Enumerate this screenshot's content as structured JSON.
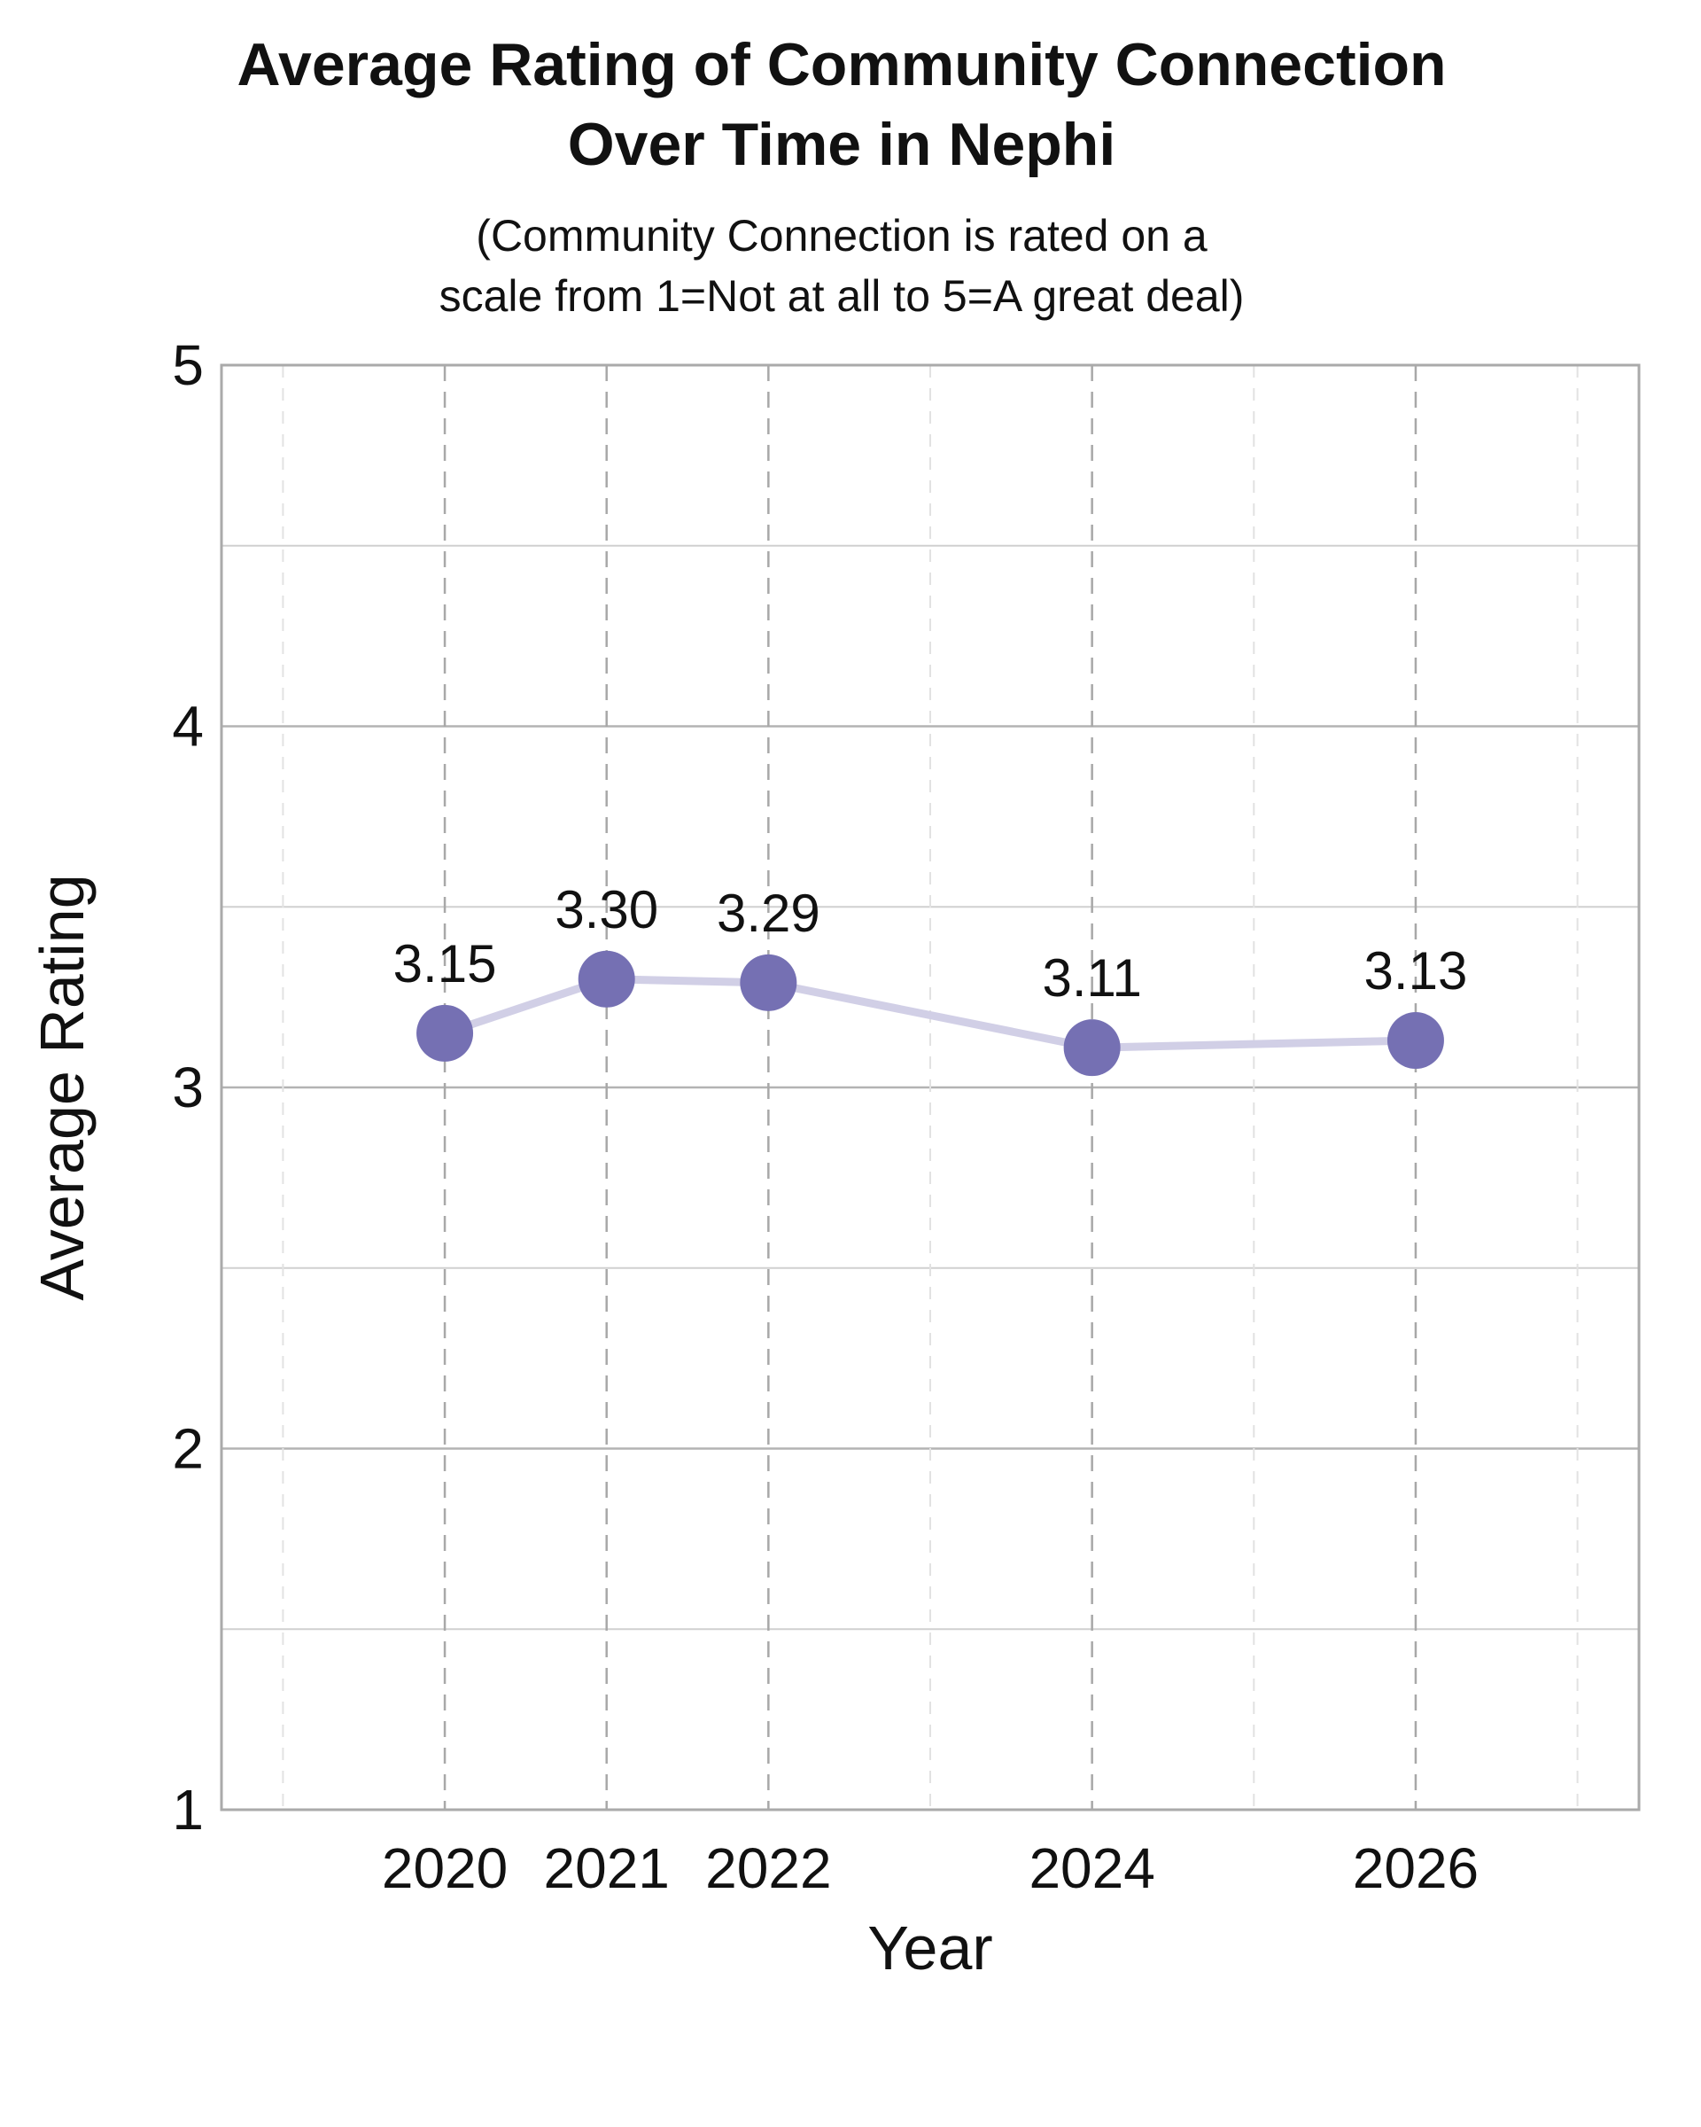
{
  "chart_data": {
    "type": "line",
    "title_lines": [
      "Average Rating of Community Connection",
      "Over Time in Nephi"
    ],
    "subtitle_lines": [
      "(Community Connection is rated on a",
      "scale from 1=Not at all to 5=A great deal)"
    ],
    "xlabel": "Year",
    "ylabel": "Average Rating",
    "x": [
      2020,
      2021,
      2022,
      2024,
      2026
    ],
    "x_tick_labels": [
      "2020",
      "2021",
      "2022",
      "2024",
      "2026"
    ],
    "y": [
      3.15,
      3.3,
      3.29,
      3.11,
      3.13
    ],
    "data_labels": [
      "3.15",
      "3.30",
      "3.29",
      "3.11",
      "3.13"
    ],
    "xlim": [
      2018.62,
      2027.38
    ],
    "ylim": [
      1,
      5
    ],
    "y_ticks": [
      1,
      2,
      3,
      4,
      5
    ],
    "y_tick_labels": [
      "1",
      "2",
      "3",
      "4",
      "5"
    ],
    "y_minor_ticks": [
      1.5,
      2.5,
      3.5,
      4.5
    ],
    "x_minor_ticks": [
      2019,
      2023,
      2025,
      2027
    ],
    "grid": true,
    "colors": {
      "marker": "#7570b3",
      "line": "#d1cfe6",
      "frame": "#aaaaaa",
      "grid_major": "#b3b3b3",
      "grid_minor": "#d0d0d0",
      "vertical_dashes": "#a8a8a8"
    }
  }
}
